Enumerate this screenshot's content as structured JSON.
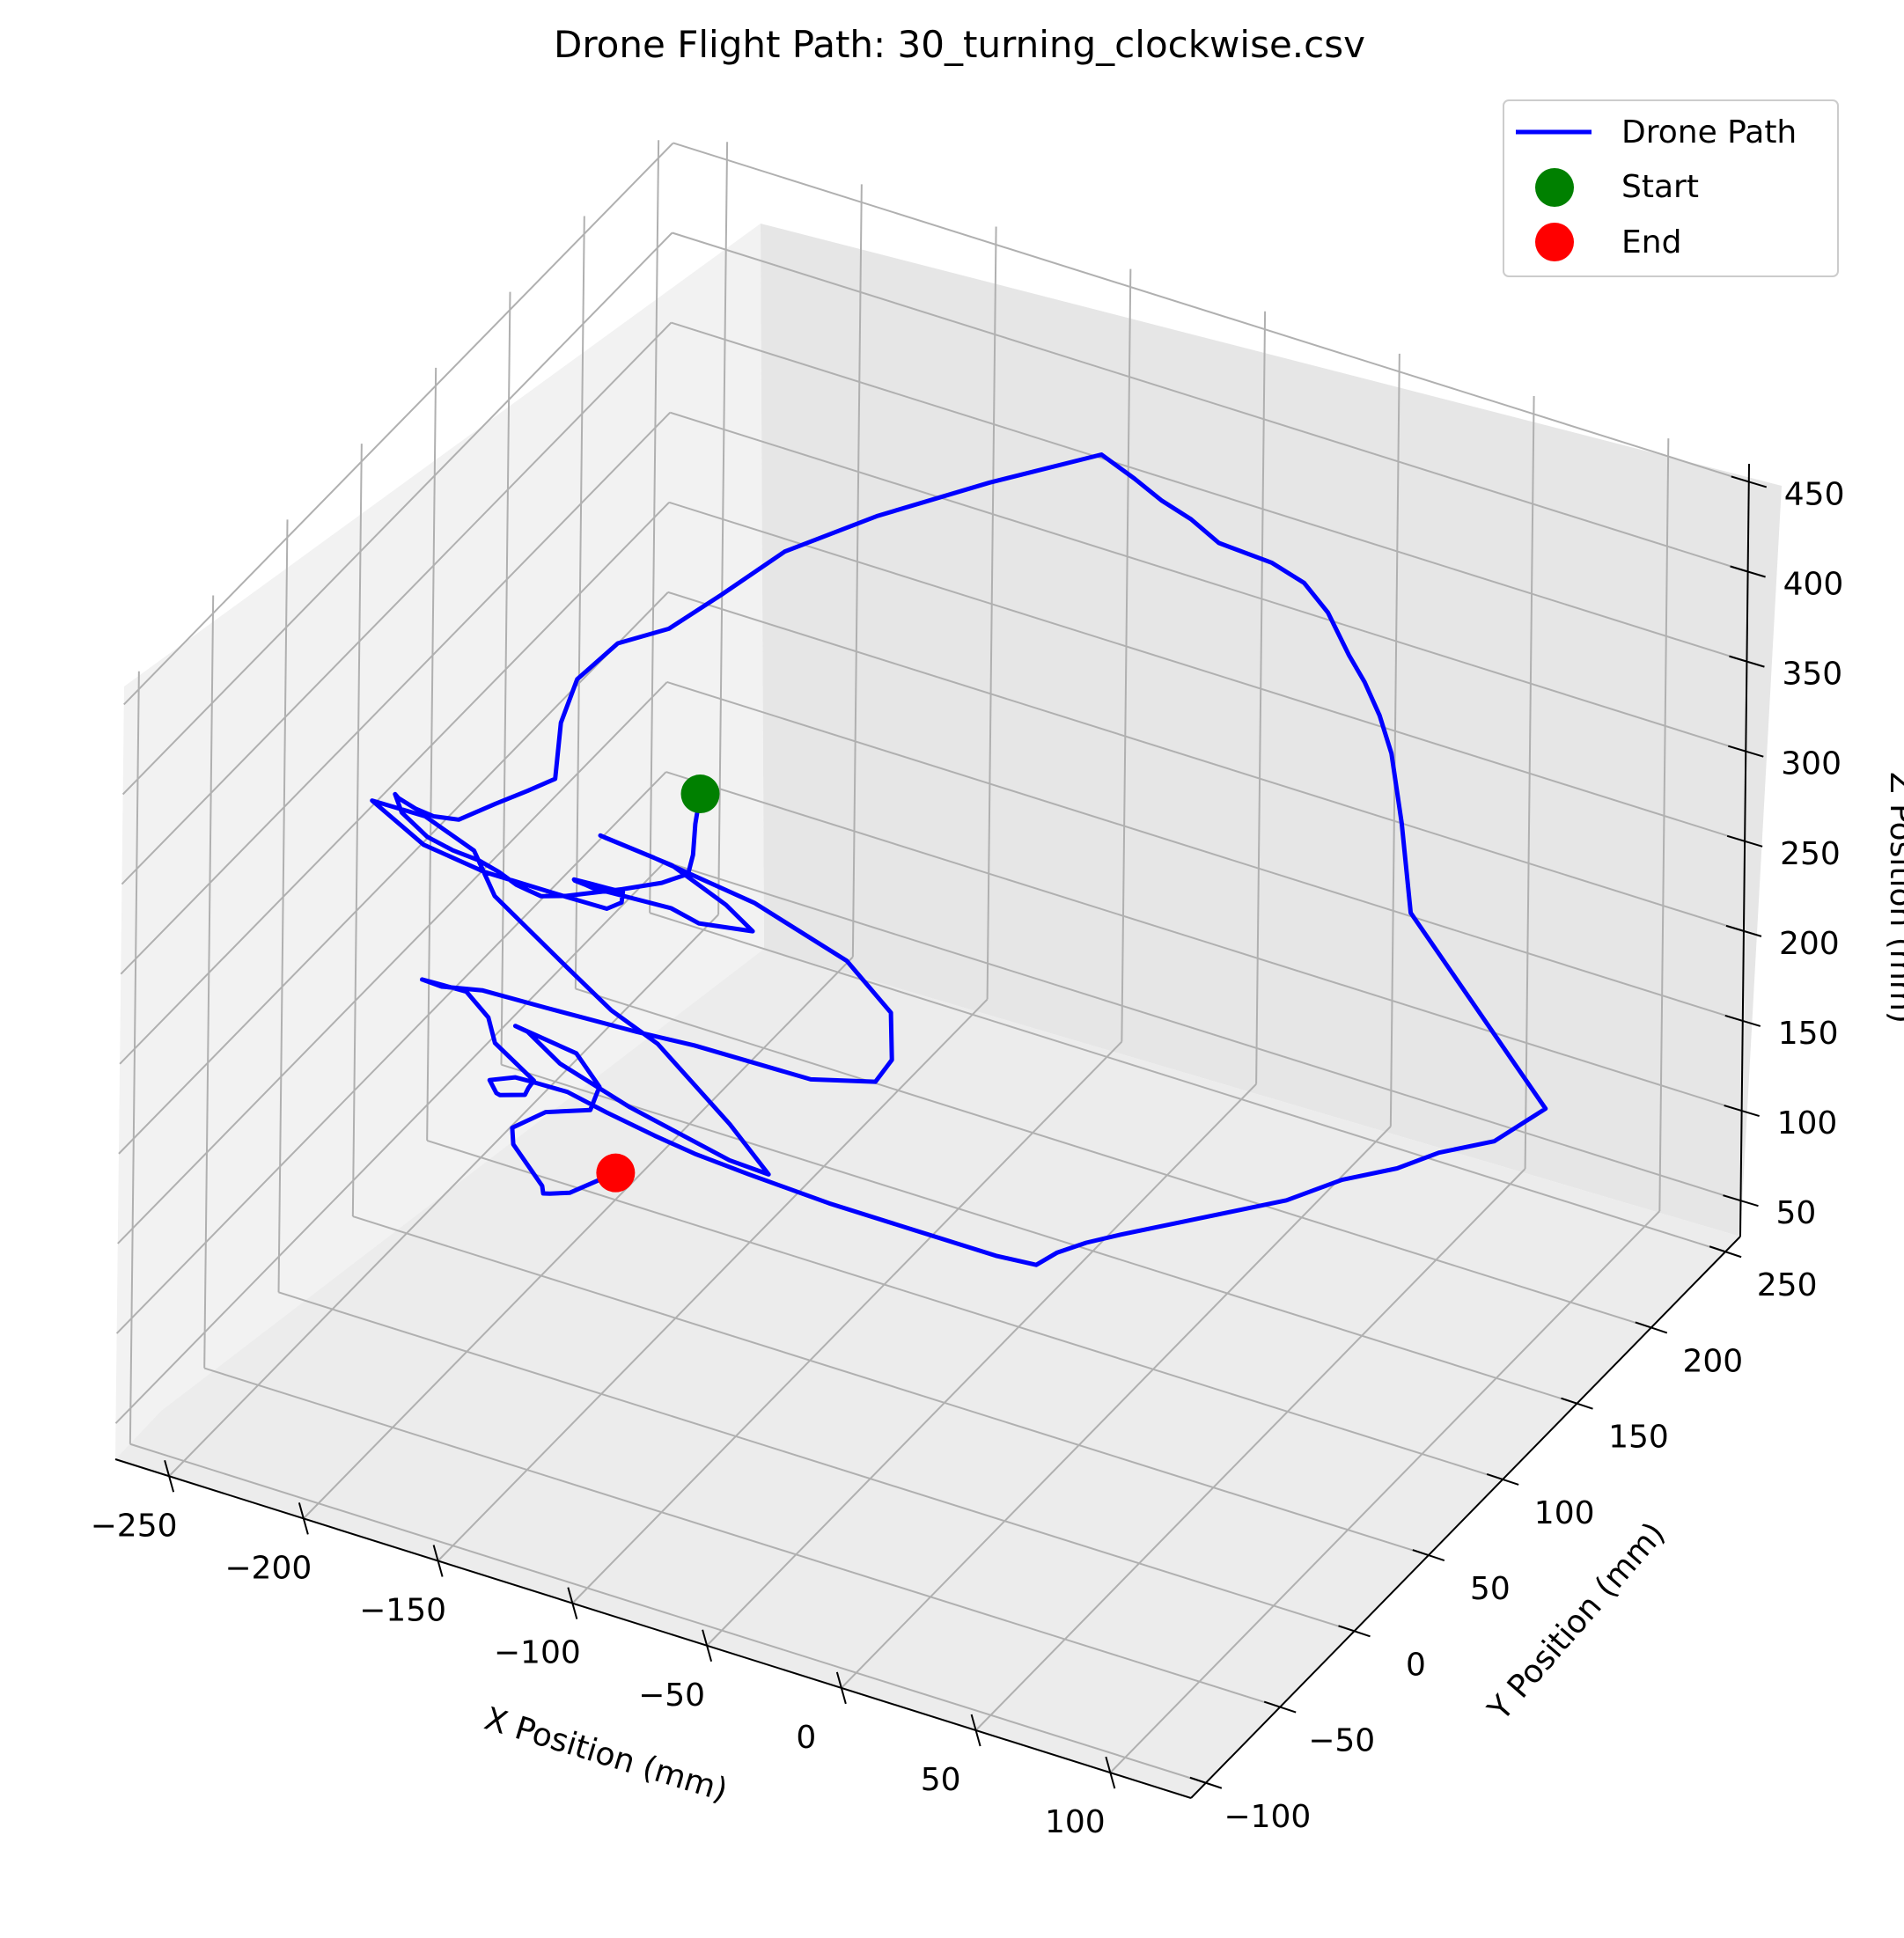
{
  "chart_data": {
    "type": "line",
    "projection": "3d",
    "title": "Drone Flight Path: 30_turning_clockwise.csv",
    "xlabel": "X Position (mm)",
    "ylabel": "Y Position (mm)",
    "zlabel": "Z Position (mm)",
    "xlim": [
      -270,
      130
    ],
    "ylim": [
      -110,
      260
    ],
    "zlim": [
      30,
      460
    ],
    "x_ticks": [
      -250,
      -200,
      -150,
      -100,
      -50,
      0,
      50,
      100
    ],
    "y_ticks": [
      -100,
      -50,
      0,
      50,
      100,
      150,
      200,
      250
    ],
    "z_ticks": [
      50,
      100,
      150,
      200,
      250,
      300,
      350,
      400,
      450
    ],
    "x_tick_labels": [
      "−250",
      "−200",
      "−150",
      "−100",
      "−50",
      "0",
      "50",
      "100"
    ],
    "y_tick_labels": [
      "−100",
      "−50",
      "0",
      "50",
      "100",
      "150",
      "200",
      "250"
    ],
    "z_tick_labels": [
      "50",
      "100",
      "150",
      "200",
      "250",
      "300",
      "350",
      "400",
      "450"
    ],
    "grid": true,
    "legend_position": "top-right",
    "series": [
      {
        "name": "Drone Path",
        "color": "#0000ff",
        "x": [
          -105,
          -104,
          -102,
          -101,
          -108,
          -120,
          -138,
          -150,
          -160,
          -170,
          -182,
          -195,
          -210,
          -225,
          -240,
          -248,
          -244,
          -232,
          -220,
          -208,
          -196,
          -188,
          -186,
          -195,
          -200,
          -196,
          -188,
          -185,
          -178,
          -160,
          -135,
          -110,
          -95,
          -82,
          -70,
          -58,
          -40,
          -30,
          -20,
          -12,
          -5,
          5,
          15,
          30,
          50,
          80,
          110,
          128,
          120,
          105,
          95,
          80,
          65,
          50,
          35,
          20,
          10,
          2,
          -3,
          -18,
          -48,
          -80,
          -110,
          -130,
          -145,
          -160,
          -172,
          -182,
          -186,
          -190,
          -182,
          -178,
          -166,
          -162,
          -160,
          -180,
          -188,
          -199,
          -205,
          -210,
          -200,
          -185,
          -158,
          -122,
          -98,
          -52,
          -28,
          -22,
          -28,
          -50,
          -90,
          -130,
          -150,
          -145,
          -118,
          -95,
          -85,
          -105,
          -118,
          -150,
          -155,
          -162,
          -165,
          -162,
          -158,
          -155,
          -150,
          -150,
          -162,
          -190,
          -210,
          -232,
          -215,
          -194,
          -178,
          -140,
          -118,
          -98,
          -60,
          -40,
          -60,
          -108,
          -145,
          -168,
          -178,
          -158,
          -152,
          -158,
          -180,
          -195,
          -200,
          -200,
          -200,
          -205,
          -208,
          -206,
          -200
        ],
        "y": [
          -20,
          -25,
          -30,
          -35,
          -40,
          -45,
          -50,
          -45,
          -35,
          -25,
          -15,
          -5,
          5,
          15,
          25,
          35,
          30,
          20,
          10,
          5,
          8,
          15,
          30,
          50,
          70,
          90,
          110,
          140,
          170,
          200,
          230,
          260,
          255,
          250,
          248,
          245,
          248,
          252,
          250,
          250,
          248,
          240,
          230,
          210,
          180,
          160,
          140,
          130,
          110,
          100,
          90,
          80,
          70,
          60,
          50,
          40,
          35,
          30,
          25,
          25,
          25,
          25,
          25,
          25,
          25,
          20,
          15,
          10,
          5,
          -5,
          -15,
          -20,
          -25,
          -30,
          -30,
          -20,
          -10,
          -5,
          -10,
          -15,
          -20,
          -20,
          -25,
          -30,
          -35,
          -40,
          -40,
          -40,
          -30,
          -20,
          -10,
          -5,
          -5,
          -10,
          -15,
          -20,
          -20,
          -20,
          -15,
          -10,
          -5,
          0,
          5,
          10,
          15,
          20,
          10,
          0,
          -5,
          -10,
          -15,
          -10,
          -5,
          -10,
          -25,
          -45,
          -55,
          -60,
          -80,
          -90,
          -80,
          -60,
          -40,
          -20,
          -10,
          -5,
          0,
          5,
          15,
          20,
          30,
          40,
          50,
          60,
          70,
          80,
          100
        ],
        "z": [
          402,
          390,
          378,
          372,
          368,
          363,
          355,
          345,
          335,
          325,
          318,
          310,
          300,
          292,
          290,
          288,
          292,
          300,
          310,
          318,
          330,
          335,
          330,
          340,
          345,
          350,
          345,
          340,
          342,
          345,
          350,
          352,
          350,
          348,
          345,
          340,
          335,
          325,
          315,
          295,
          285,
          278,
          270,
          255,
          240,
          230,
          220,
          210,
          205,
          200,
          195,
          190,
          180,
          175,
          170,
          165,
          160,
          155,
          150,
          148,
          148,
          148,
          150,
          152,
          155,
          165,
          175,
          180,
          185,
          190,
          195,
          200,
          210,
          220,
          225,
          228,
          230,
          235,
          240,
          245,
          250,
          255,
          262,
          270,
          278,
          285,
          295,
          310,
          325,
          335,
          340,
          342,
          345,
          350,
          352,
          345,
          335,
          330,
          328,
          320,
          315,
          310,
          305,
          300,
          295,
          290,
          295,
          300,
          305,
          310,
          320,
          330,
          325,
          320,
          315,
          310,
          305,
          300,
          290,
          280,
          270,
          260,
          250,
          240,
          230,
          220,
          200,
          180,
          160,
          140,
          120,
          100,
          80,
          65,
          55,
          48,
          45
        ]
      }
    ],
    "markers": [
      {
        "name": "Start",
        "color": "#008000",
        "x": -105,
        "y": -20,
        "z": 402
      },
      {
        "name": "End",
        "color": "#ff0000",
        "x": -200,
        "y": 100,
        "z": 45
      }
    ]
  }
}
